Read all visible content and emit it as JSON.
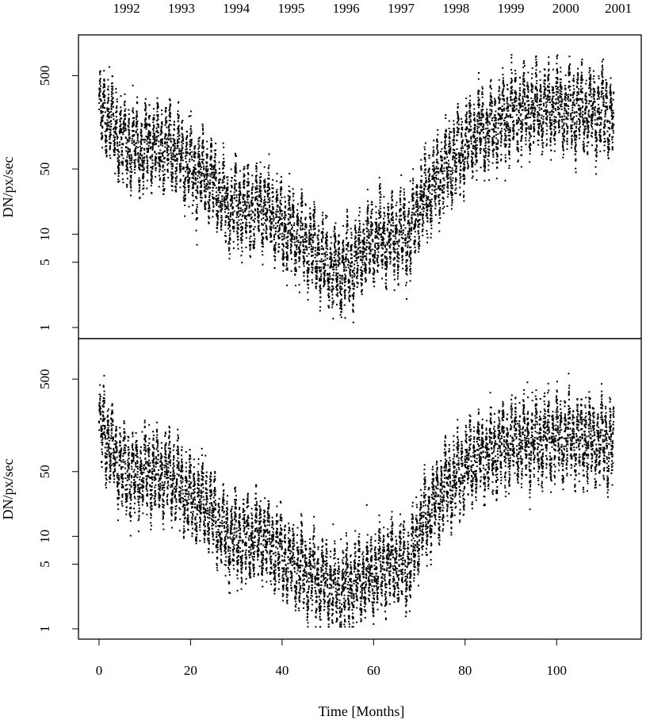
{
  "chart_data": [
    {
      "type": "scatter",
      "ylabel": "DN/px/sec",
      "y_scale": "log",
      "ylim": [
        1,
        1000
      ],
      "y_ticks": [
        1,
        5,
        10,
        50,
        500
      ],
      "y_tick_labels": [
        "1",
        "5",
        "10",
        "50",
        "500"
      ],
      "xlim": [
        -4.5,
        118.5
      ],
      "x_ticks_labeled": false,
      "top_axis_labels": [
        "1992",
        "1993",
        "1994",
        "1995",
        "1996",
        "1997",
        "1998",
        "1999",
        "2000",
        "2001"
      ],
      "top_axis_months": [
        6,
        18,
        30,
        42,
        54,
        66,
        78,
        90,
        102,
        113.5
      ],
      "trend": {
        "x": [
          0,
          2,
          5,
          8,
          12,
          16,
          20,
          24,
          28,
          32,
          36,
          40,
          44,
          48,
          52,
          56,
          60,
          64,
          68,
          70,
          74,
          78,
          82,
          86,
          90,
          96,
          100,
          104,
          108,
          112
        ],
        "y": [
          200,
          180,
          100,
          80,
          90,
          85,
          50,
          40,
          20,
          18,
          20,
          12,
          9,
          6,
          4,
          5,
          9,
          9,
          10,
          20,
          40,
          70,
          110,
          140,
          200,
          220,
          230,
          210,
          210,
          190
        ]
      },
      "marker_color": "#000000"
    },
    {
      "type": "scatter",
      "ylabel": "DN/px/sec",
      "xlabel": "Time [Months]",
      "y_scale": "log",
      "ylim": [
        1,
        1000
      ],
      "y_ticks": [
        1,
        5,
        10,
        50,
        500
      ],
      "y_tick_labels": [
        "1",
        "5",
        "10",
        "50",
        "500"
      ],
      "xlim": [
        -4.5,
        118.5
      ],
      "x_ticks": [
        0,
        20,
        40,
        60,
        80,
        100
      ],
      "x_tick_labels": [
        "0",
        "20",
        "40",
        "60",
        "80",
        "100"
      ],
      "trend": {
        "x": [
          0,
          2,
          5,
          8,
          12,
          16,
          20,
          24,
          28,
          32,
          36,
          40,
          44,
          48,
          52,
          56,
          60,
          64,
          68,
          70,
          74,
          78,
          82,
          86,
          90,
          96,
          100,
          104,
          108,
          112
        ],
        "y": [
          150,
          110,
          50,
          45,
          50,
          45,
          25,
          20,
          10,
          9,
          10,
          6,
          4.5,
          3.5,
          2.5,
          3,
          4,
          5,
          5,
          12,
          25,
          45,
          70,
          80,
          100,
          110,
          120,
          110,
          105,
          100
        ]
      },
      "marker_color": "#000000"
    }
  ]
}
